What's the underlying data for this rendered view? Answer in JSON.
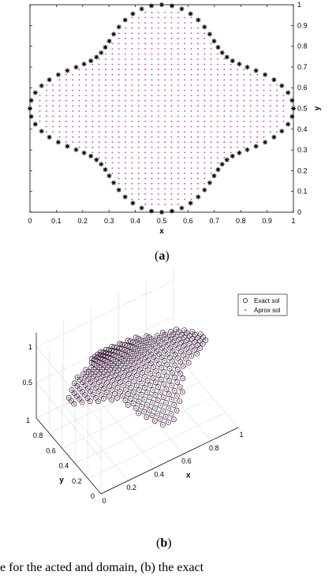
{
  "chart_data": [
    {
      "type": "scatter",
      "panel": "(a)",
      "xlabel": "x",
      "ylabel": "y",
      "xlim": [
        0,
        1
      ],
      "ylim": [
        0,
        1
      ],
      "xticks": [
        "0",
        "0.1",
        "0.2",
        "0.3",
        "0.4",
        "0.5",
        "0.6",
        "0.7",
        "0.8",
        "0.9",
        "1"
      ],
      "yticks": [
        "0",
        "0.1",
        "0.2",
        "0.3",
        "0.4",
        "0.5",
        "0.6",
        "0.7",
        "0.8",
        "0.9",
        "1"
      ],
      "y_axis_side": "right",
      "grid": false,
      "series": [
        {
          "marker": "asterisk",
          "color": "#000000",
          "role": "boundary",
          "count": 80
        },
        {
          "marker": "dot",
          "color": "#cc33cc",
          "role": "interior",
          "spacing": 0.025
        }
      ],
      "boundary_shape": "four-lobed domain, centroid (0.5,0.5), radius 0.425 + 0.075*cos(4θ) in the corner directions"
    },
    {
      "type": "scatter3d",
      "panel": "(b)",
      "xlabel": "x",
      "ylabel": "y",
      "xlim": [
        0,
        1
      ],
      "ylim": [
        0,
        1
      ],
      "zlim": [
        0,
        1
      ],
      "xticks": [
        "0",
        "0.2",
        "0.4",
        "0.6",
        "0.8",
        "1"
      ],
      "yticks": [
        "0",
        "0.2",
        "0.4",
        "0.6",
        "0.8",
        "1"
      ],
      "zticks": [
        "0.5",
        "1"
      ],
      "grid": true,
      "legend": "top-right",
      "series": [
        {
          "name": "Exact sol",
          "marker": "circle",
          "color": "#000000"
        },
        {
          "name": "Aprox sol",
          "marker": "dot",
          "color": "#cc33cc"
        }
      ]
    }
  ],
  "captions": {
    "a": [
      "(",
      "a",
      ")"
    ],
    "b": [
      "(",
      "b",
      ")"
    ],
    "bottom": "e for the acted and domain, (b) the exact"
  },
  "colors": {
    "boundary": "#000000",
    "interior": "#cc33cc",
    "axis": "#000000",
    "grid": "#dddddd"
  }
}
